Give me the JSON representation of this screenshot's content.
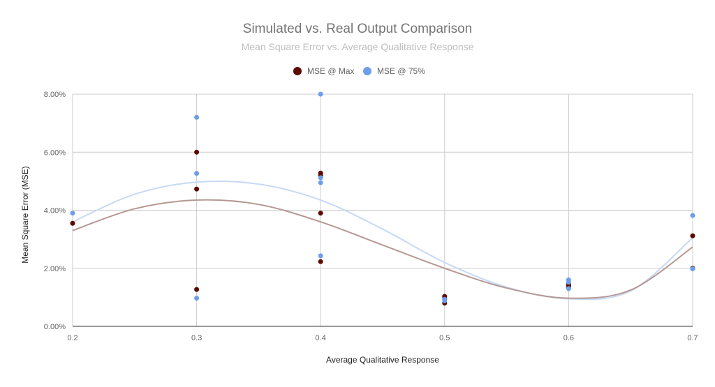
{
  "chart_data": {
    "type": "scatter",
    "title": "Simulated vs. Real Output Comparison",
    "subtitle": "Mean Square Error vs. Average Qualitative Response",
    "xlabel": "Average Qualitative Response",
    "ylabel": "Mean Square Error (MSE)",
    "xlim": [
      0.2,
      0.7
    ],
    "ylim": [
      0,
      0.08
    ],
    "x_ticks": [
      0.2,
      0.3,
      0.4,
      0.5,
      0.6,
      0.7
    ],
    "x_tick_labels": [
      "0.2",
      "0.3",
      "0.4",
      "0.5",
      "0.6",
      "0.7"
    ],
    "y_ticks": [
      0,
      0.02,
      0.04,
      0.06,
      0.08
    ],
    "y_tick_labels": [
      "0.00%",
      "2.00%",
      "4.00%",
      "6.00%",
      "8.00%"
    ],
    "grid": true,
    "legend_position": "top",
    "series": [
      {
        "name": "MSE @ Max",
        "color": "#5c0a00",
        "trendline_color": "#b59894",
        "points": [
          [
            0.2,
            0.0355
          ],
          [
            0.3,
            0.06
          ],
          [
            0.3,
            0.0473
          ],
          [
            0.3,
            0.0127
          ],
          [
            0.4,
            0.0528
          ],
          [
            0.4,
            0.052
          ],
          [
            0.4,
            0.039
          ],
          [
            0.4,
            0.0223
          ],
          [
            0.5,
            0.0103
          ],
          [
            0.5,
            0.0095
          ],
          [
            0.5,
            0.008
          ],
          [
            0.6,
            0.0145
          ],
          [
            0.6,
            0.014
          ],
          [
            0.6,
            0.0135
          ],
          [
            0.7,
            0.0312
          ],
          [
            0.7,
            0.02
          ]
        ],
        "trendline": [
          [
            0.2,
            0.033
          ],
          [
            0.25,
            0.0405
          ],
          [
            0.3,
            0.0435
          ],
          [
            0.35,
            0.042
          ],
          [
            0.4,
            0.036
          ],
          [
            0.45,
            0.028
          ],
          [
            0.5,
            0.02
          ],
          [
            0.55,
            0.0132
          ],
          [
            0.6,
            0.0097
          ],
          [
            0.65,
            0.0125
          ],
          [
            0.7,
            0.0273
          ]
        ]
      },
      {
        "name": "MSE @ 75%",
        "color": "#6d9eeb",
        "trendline_color": "#c6d9f5",
        "points": [
          [
            0.2,
            0.039
          ],
          [
            0.3,
            0.072
          ],
          [
            0.3,
            0.0527
          ],
          [
            0.3,
            0.0097
          ],
          [
            0.4,
            0.08
          ],
          [
            0.4,
            0.0512
          ],
          [
            0.4,
            0.0495
          ],
          [
            0.4,
            0.0243
          ],
          [
            0.5,
            0.0093
          ],
          [
            0.5,
            0.0088
          ],
          [
            0.6,
            0.016
          ],
          [
            0.6,
            0.0152
          ],
          [
            0.6,
            0.013
          ],
          [
            0.7,
            0.0382
          ],
          [
            0.7,
            0.0198
          ]
        ],
        "trendline": [
          [
            0.2,
            0.036
          ],
          [
            0.25,
            0.0455
          ],
          [
            0.3,
            0.0497
          ],
          [
            0.35,
            0.049
          ],
          [
            0.4,
            0.0435
          ],
          [
            0.45,
            0.0335
          ],
          [
            0.5,
            0.022
          ],
          [
            0.55,
            0.0135
          ],
          [
            0.6,
            0.0095
          ],
          [
            0.65,
            0.0122
          ],
          [
            0.7,
            0.0305
          ]
        ]
      }
    ]
  }
}
